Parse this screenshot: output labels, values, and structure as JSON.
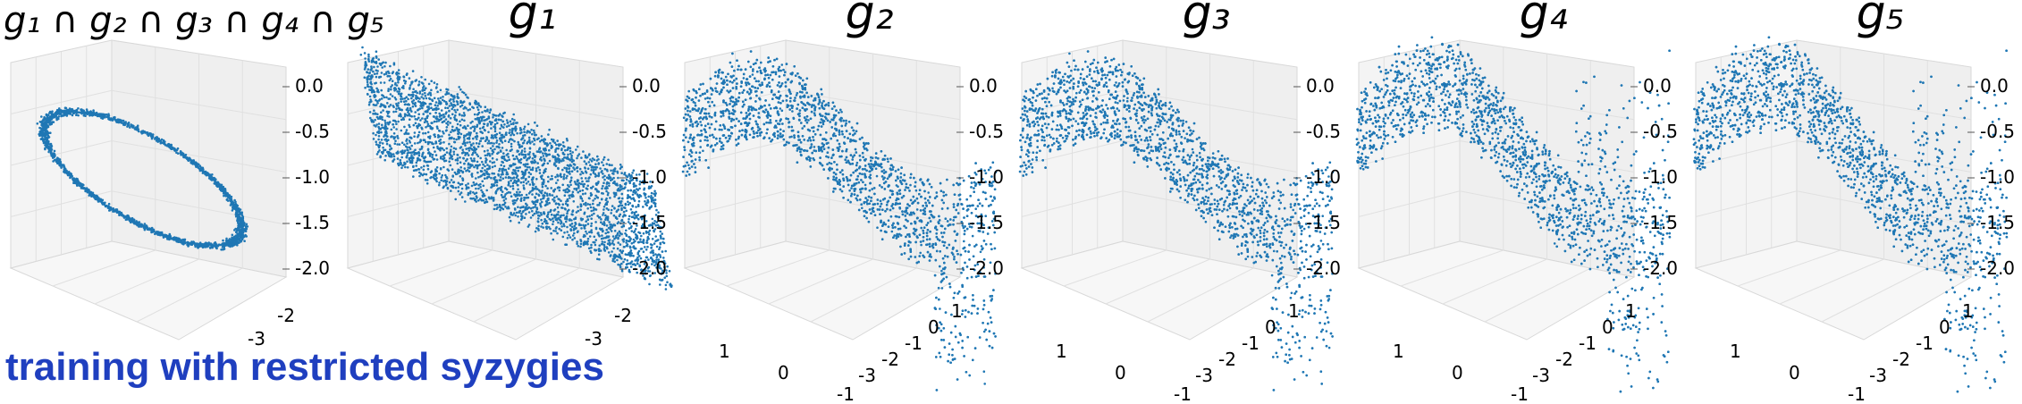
{
  "figure": {
    "caption": "training with restricted syzygies",
    "caption_color": "#1f3fbf",
    "point_color": "#1f77b4"
  },
  "chart_data": [
    {
      "type": "scatter",
      "subtype": "3d-scatter",
      "title": "g₁ ∩ g₂ ∩ g₃ ∩ g₄ ∩ g₅",
      "shape": "ring",
      "z_ticks": [
        "0.0",
        "-0.5",
        "-1.0",
        "-1.5",
        "-2.0"
      ],
      "y_ticks": [
        "-3",
        "-2"
      ],
      "x_ticks": [],
      "zlim": [
        -2.0,
        0.0
      ]
    },
    {
      "type": "scatter",
      "subtype": "3d-scatter",
      "title": "g₁",
      "shape": "slab",
      "z_ticks": [
        "0.0",
        "-0.5",
        "-1.0",
        "-1.5",
        "-2.0"
      ],
      "y_ticks": [
        "-3",
        "-2"
      ],
      "x_ticks": [],
      "zlim": [
        -2.0,
        0.0
      ]
    },
    {
      "type": "scatter",
      "subtype": "3d-scatter",
      "title": "g₂",
      "shape": "wave",
      "z_ticks": [
        "0.0",
        "-0.5",
        "-1.0",
        "-1.5",
        "-2.0"
      ],
      "y_ticks": [
        "-3",
        "-2",
        "-1",
        "0",
        "1"
      ],
      "x_ticks": [
        "1",
        "0",
        "-1"
      ],
      "zlim": [
        -2.0,
        0.0
      ]
    },
    {
      "type": "scatter",
      "subtype": "3d-scatter",
      "title": "g₃",
      "shape": "wave",
      "z_ticks": [
        "0.0",
        "-0.5",
        "-1.0",
        "-1.5",
        "-2.0"
      ],
      "y_ticks": [
        "-3",
        "-2",
        "-1",
        "0",
        "1"
      ],
      "x_ticks": [
        "1",
        "0",
        "-1"
      ],
      "zlim": [
        -2.0,
        0.0
      ]
    },
    {
      "type": "scatter",
      "subtype": "3d-scatter",
      "title": "g₄",
      "shape": "wave-steep",
      "z_ticks": [
        "0.0",
        "-0.5",
        "-1.0",
        "-1.5",
        "-2.0"
      ],
      "y_ticks": [
        "-3",
        "-2",
        "-1",
        "0",
        "1"
      ],
      "x_ticks": [
        "1",
        "0",
        "-1"
      ],
      "zlim": [
        -2.0,
        0.0
      ]
    },
    {
      "type": "scatter",
      "subtype": "3d-scatter",
      "title": "g₅",
      "shape": "wave-steep",
      "z_ticks": [
        "0.0",
        "-0.5",
        "-1.0",
        "-1.5",
        "-2.0"
      ],
      "y_ticks": [
        "-3",
        "-2",
        "-1",
        "0",
        "1"
      ],
      "x_ticks": [
        "1",
        "0",
        "-1"
      ],
      "zlim": [
        -2.0,
        0.0
      ]
    }
  ]
}
